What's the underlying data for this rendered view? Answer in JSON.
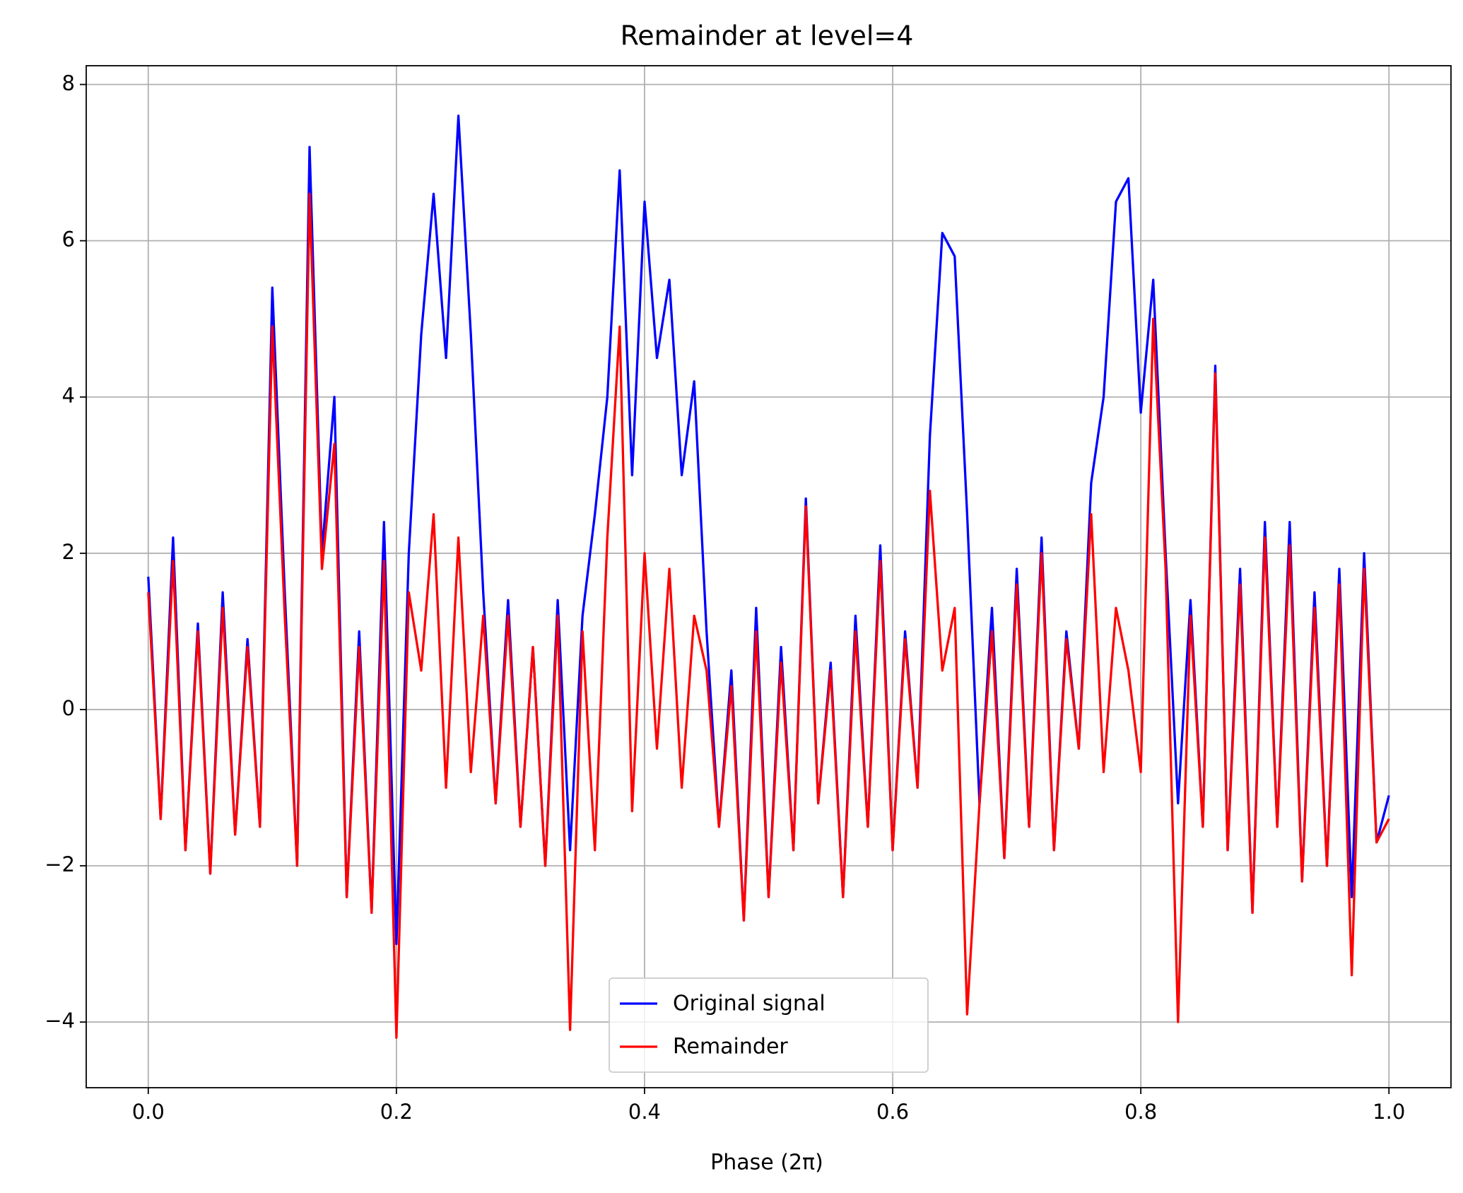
{
  "chart_data": {
    "type": "line",
    "title": "Remainder at level=4",
    "x_label": "Phase (2π)",
    "x": [
      0,
      0.01,
      0.02,
      0.03,
      0.04,
      0.05,
      0.06,
      0.07,
      0.08,
      0.09,
      0.1,
      0.11,
      0.12,
      0.13,
      0.14,
      0.15,
      0.16,
      0.17,
      0.18,
      0.19,
      0.2,
      0.21,
      0.22,
      0.23,
      0.24,
      0.25,
      0.26,
      0.27,
      0.28,
      0.29,
      0.3,
      0.31,
      0.32,
      0.33,
      0.34,
      0.35,
      0.36,
      0.37,
      0.38,
      0.39,
      0.4,
      0.41,
      0.42,
      0.43,
      0.44,
      0.45,
      0.46,
      0.47,
      0.48,
      0.49,
      0.5,
      0.51,
      0.52,
      0.53,
      0.54,
      0.55,
      0.56,
      0.57,
      0.58,
      0.59,
      0.6,
      0.61,
      0.62,
      0.63,
      0.64,
      0.65,
      0.66,
      0.67,
      0.68,
      0.69,
      0.7,
      0.71,
      0.72,
      0.73,
      0.74,
      0.75,
      0.76,
      0.77,
      0.78,
      0.79,
      0.8,
      0.81,
      0.82,
      0.83,
      0.84,
      0.85,
      0.86,
      0.87,
      0.88,
      0.89,
      0.9,
      0.91,
      0.92,
      0.93,
      0.94,
      0.95,
      0.96,
      0.97,
      0.98,
      0.99,
      1
    ],
    "series": [
      {
        "name": "Original signal",
        "color": "#0000ff",
        "values": [
          1.7,
          -1.4,
          2.2,
          -1.8,
          1.1,
          -2.1,
          1.5,
          -1.6,
          0.9,
          -1.5,
          5.4,
          1.5,
          -2.0,
          7.2,
          2.0,
          4.0,
          -2.4,
          1.0,
          -2.6,
          2.4,
          -3.0,
          2.0,
          4.8,
          6.6,
          4.5,
          7.6,
          4.8,
          1.5,
          -1.2,
          1.4,
          -1.5,
          0.8,
          -2.0,
          1.4,
          -1.8,
          1.2,
          2.5,
          4.0,
          6.9,
          3.0,
          6.5,
          4.5,
          5.5,
          3.0,
          4.2,
          1.0,
          -1.5,
          0.5,
          -2.7,
          1.3,
          -2.4,
          0.8,
          -1.8,
          2.7,
          -1.2,
          0.6,
          -2.4,
          1.2,
          -1.5,
          2.1,
          -1.8,
          1.0,
          -1.0,
          3.5,
          6.1,
          5.8,
          2.5,
          -1.2,
          1.3,
          -1.9,
          1.8,
          -1.5,
          2.2,
          -1.8,
          1.0,
          -0.5,
          2.9,
          4.0,
          6.5,
          6.8,
          3.8,
          5.5,
          2.0,
          -1.2,
          1.4,
          -1.5,
          4.4,
          -1.8,
          1.8,
          -2.6,
          2.4,
          -1.5,
          2.4,
          -2.2,
          1.5,
          -2.0,
          1.8,
          -2.4,
          2.0,
          -1.7,
          -1.1
        ]
      },
      {
        "name": "Remainder",
        "color": "#ff0000",
        "values": [
          1.5,
          -1.4,
          1.9,
          -1.8,
          1.0,
          -2.1,
          1.3,
          -1.6,
          0.8,
          -1.5,
          4.9,
          1.2,
          -2.0,
          6.6,
          1.8,
          3.4,
          -2.4,
          0.8,
          -2.6,
          1.9,
          -4.2,
          1.5,
          0.5,
          2.5,
          -1.0,
          2.2,
          -0.8,
          1.2,
          -1.2,
          1.2,
          -1.5,
          0.8,
          -2.0,
          1.2,
          -4.1,
          1.0,
          -1.8,
          2.2,
          4.9,
          -1.3,
          2.0,
          -0.5,
          1.8,
          -1.0,
          1.2,
          0.5,
          -1.5,
          0.3,
          -2.7,
          1.0,
          -2.4,
          0.6,
          -1.8,
          2.6,
          -1.2,
          0.5,
          -2.4,
          1.0,
          -1.5,
          1.9,
          -1.8,
          0.9,
          -1.0,
          2.8,
          0.5,
          1.3,
          -3.9,
          -1.2,
          1.0,
          -1.9,
          1.6,
          -1.5,
          2.0,
          -1.8,
          0.9,
          -0.5,
          2.5,
          -0.8,
          1.3,
          0.5,
          -0.8,
          5.0,
          1.8,
          -4.0,
          1.2,
          -1.5,
          4.3,
          -1.8,
          1.6,
          -2.6,
          2.2,
          -1.5,
          2.1,
          -2.2,
          1.3,
          -2.0,
          1.6,
          -3.4,
          1.8,
          -1.7,
          -1.4
        ]
      }
    ],
    "xlim": [
      -0.05,
      1.05
    ],
    "ylim": [
      -4.84,
      8.24
    ],
    "xticks": [
      {
        "value": 0,
        "label": "0.0"
      },
      0.2,
      0.4,
      0.6,
      0.8,
      {
        "value": 1,
        "label": "1.0"
      }
    ],
    "yticks": [
      {
        "value": -4,
        "label": "−4"
      },
      {
        "value": -2,
        "label": "−2"
      },
      0,
      2,
      4,
      6,
      8
    ],
    "grid": true,
    "legend": "lower center"
  }
}
